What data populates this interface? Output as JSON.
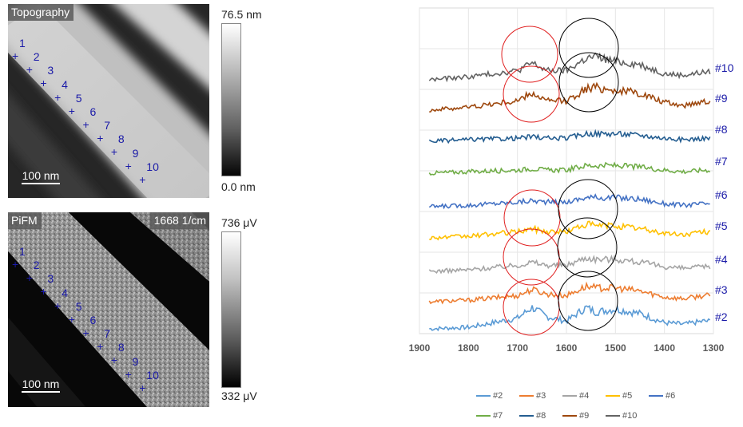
{
  "topography": {
    "title": "Topography",
    "scale_bar": "100 nm",
    "colorbar_max": "76.5 nm",
    "colorbar_min": "0.0 nm",
    "markers": [
      "1",
      "2",
      "3",
      "4",
      "5",
      "6",
      "7",
      "8",
      "9",
      "10"
    ]
  },
  "pifm": {
    "title": "PiFM",
    "wavenumber": "1668 1/cm",
    "scale_bar": "100 nm",
    "colorbar_max": "736 μV",
    "colorbar_min": "332 μV",
    "markers": [
      "1",
      "2",
      "3",
      "4",
      "5",
      "6",
      "7",
      "8",
      "9",
      "10"
    ]
  },
  "marker_color": "#1a1aa8",
  "chart_data": {
    "type": "line",
    "x_ticks": [
      "1900",
      "1800",
      "1700",
      "1600",
      "1500",
      "1400",
      "1300"
    ],
    "xlim": [
      1900,
      1300
    ],
    "x_reversed": true,
    "grid": true,
    "series": [
      {
        "name": "#2",
        "label": "#2",
        "color": "#5b9bd5",
        "x": [
          1880,
          1800,
          1700,
          1670,
          1640,
          1600,
          1560,
          1540,
          1500,
          1450,
          1400,
          1360,
          1320
        ],
        "values": [
          0.0,
          0.05,
          0.35,
          0.7,
          0.4,
          0.25,
          0.7,
          0.55,
          0.65,
          0.5,
          0.2,
          0.15,
          0.25
        ]
      },
      {
        "name": "#3",
        "label": "#3",
        "color": "#ed7d31",
        "x": [
          1880,
          1800,
          1700,
          1670,
          1640,
          1600,
          1560,
          1540,
          1500,
          1450,
          1400,
          1360,
          1320
        ],
        "values": [
          0.0,
          0.05,
          0.2,
          0.4,
          0.25,
          0.2,
          0.5,
          0.45,
          0.45,
          0.35,
          0.15,
          0.1,
          0.2
        ]
      },
      {
        "name": "#4",
        "label": "#4",
        "color": "#a5a5a5",
        "x": [
          1880,
          1800,
          1700,
          1670,
          1640,
          1600,
          1560,
          1540,
          1500,
          1450,
          1400,
          1360,
          1320
        ],
        "values": [
          0.0,
          0.05,
          0.2,
          0.3,
          0.2,
          0.2,
          0.45,
          0.4,
          0.4,
          0.3,
          0.15,
          0.1,
          0.15
        ]
      },
      {
        "name": "#5",
        "label": "#5",
        "color": "#ffc000",
        "x": [
          1880,
          1800,
          1700,
          1670,
          1640,
          1600,
          1560,
          1540,
          1500,
          1450,
          1400,
          1360,
          1320
        ],
        "values": [
          0.0,
          0.05,
          0.2,
          0.3,
          0.2,
          0.2,
          0.45,
          0.4,
          0.4,
          0.3,
          0.15,
          0.1,
          0.2
        ]
      },
      {
        "name": "#6",
        "label": "#6",
        "color": "#4472c4",
        "x": [
          1880,
          1800,
          1700,
          1670,
          1640,
          1600,
          1560,
          1540,
          1500,
          1450,
          1400,
          1360,
          1320
        ],
        "values": [
          0.0,
          0.05,
          0.15,
          0.2,
          0.15,
          0.15,
          0.3,
          0.3,
          0.3,
          0.25,
          0.1,
          0.05,
          0.1
        ]
      },
      {
        "name": "#7",
        "label": "#7",
        "color": "#70ad47",
        "x": [
          1880,
          1800,
          1700,
          1670,
          1640,
          1600,
          1560,
          1540,
          1500,
          1450,
          1400,
          1360,
          1320
        ],
        "values": [
          0.0,
          0.05,
          0.1,
          0.15,
          0.1,
          0.1,
          0.25,
          0.25,
          0.25,
          0.2,
          0.1,
          0.05,
          0.1
        ]
      },
      {
        "name": "#8",
        "label": "#8",
        "color": "#255e91",
        "x": [
          1880,
          1800,
          1700,
          1670,
          1640,
          1600,
          1560,
          1540,
          1500,
          1450,
          1400,
          1360,
          1320
        ],
        "values": [
          0.0,
          0.05,
          0.1,
          0.15,
          0.1,
          0.1,
          0.25,
          0.25,
          0.25,
          0.2,
          0.1,
          0.05,
          0.1
        ]
      },
      {
        "name": "#9",
        "label": "#9",
        "color": "#9e480e",
        "x": [
          1880,
          1800,
          1700,
          1670,
          1640,
          1600,
          1560,
          1540,
          1500,
          1450,
          1400,
          1360,
          1320
        ],
        "values": [
          0.0,
          0.1,
          0.3,
          0.55,
          0.3,
          0.3,
          0.7,
          0.75,
          0.65,
          0.55,
          0.25,
          0.15,
          0.3
        ]
      },
      {
        "name": "#10",
        "label": "#10",
        "color": "#636363",
        "x": [
          1880,
          1800,
          1700,
          1670,
          1640,
          1600,
          1560,
          1540,
          1500,
          1450,
          1400,
          1360,
          1320
        ],
        "values": [
          0.0,
          0.1,
          0.3,
          0.55,
          0.3,
          0.3,
          0.7,
          0.75,
          0.6,
          0.5,
          0.2,
          0.15,
          0.25
        ]
      }
    ],
    "right_labels_color": "#1a1aa8"
  }
}
